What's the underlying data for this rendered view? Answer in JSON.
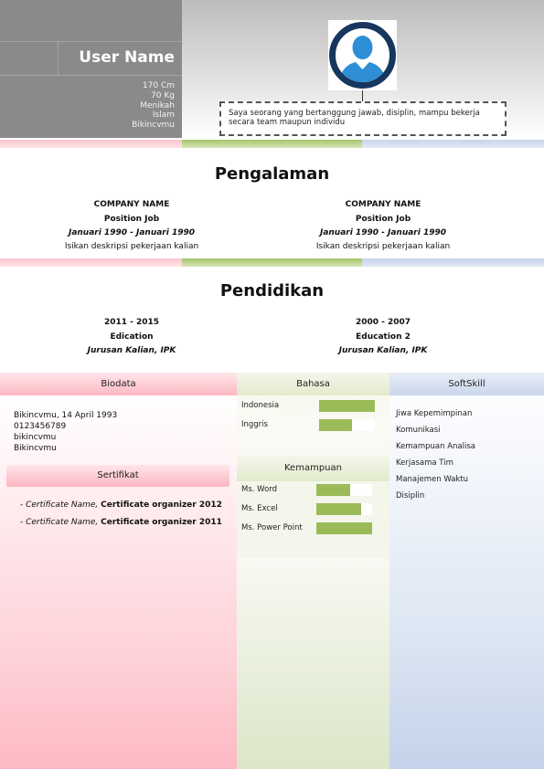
{
  "header": {
    "name": "User Name",
    "info": [
      "170 Cm",
      "70 Kg",
      "Menikah",
      "Islam",
      "Bikincvmu"
    ],
    "about": "Saya seorang yang bertanggung jawab, disiplin, mampu bekerja secara team maupun individu"
  },
  "experience": {
    "title": "Pengalaman",
    "items": [
      {
        "company": "COMPANY NAME",
        "position": "Position Job",
        "period": "Januari 1990 - Januari 1990",
        "desc": "Isikan deskripsi pekerjaan kalian"
      },
      {
        "company": "COMPANY NAME",
        "position": "Position Job",
        "period": "Januari 1990 - Januari 1990",
        "desc": "Isikan deskripsi pekerjaan kalian"
      }
    ]
  },
  "education": {
    "title": "Pendidikan",
    "items": [
      {
        "years": "2011 - 2015",
        "name": "Edication",
        "major": "Jurusan Kalian, IPK"
      },
      {
        "years": "2000 - 2007",
        "name": "Education 2",
        "major": "Jurusan Kalian, IPK"
      }
    ]
  },
  "biodata": {
    "title": "Biodata",
    "lines": [
      "Bikincvmu, 14 April 1993",
      "0123456789",
      "bikincvmu",
      "Bikincvmu"
    ]
  },
  "certificates": {
    "title": "Sertifikat",
    "items": [
      {
        "prefix": "- ",
        "name": "Certificate Name,",
        "org": "Certificate organizer 2012"
      },
      {
        "prefix": "- ",
        "name": "Certificate Name,",
        "org": "Certificate organizer 2011"
      }
    ]
  },
  "languages": {
    "title": "Bahasa",
    "items": [
      {
        "label": "Indonesia",
        "level": 1.0
      },
      {
        "label": "Inggris",
        "level": 0.59
      }
    ]
  },
  "abilities": {
    "title": "Kemampuan",
    "items": [
      {
        "label": "Ms. Word",
        "level": 0.6
      },
      {
        "label": "Ms. Excel",
        "level": 0.8
      },
      {
        "label": "Ms. Power Point",
        "level": 1.0
      }
    ]
  },
  "softskill": {
    "title": "SoftSkill",
    "items": [
      "Jiwa Kepemimpinan",
      "Komunikasi",
      "Kemampuan Analisa",
      "Kerjasama Tim",
      "Manajemen Waktu",
      "Disiplin"
    ]
  },
  "colors": {
    "accent_green": "#9bbb59",
    "pink": "#fdb9c3",
    "blue": "#c4d3ea",
    "photo_ring": "#17375e",
    "photo_person": "#2e8fd6"
  },
  "icons": {
    "photo": "person-avatar-icon"
  }
}
